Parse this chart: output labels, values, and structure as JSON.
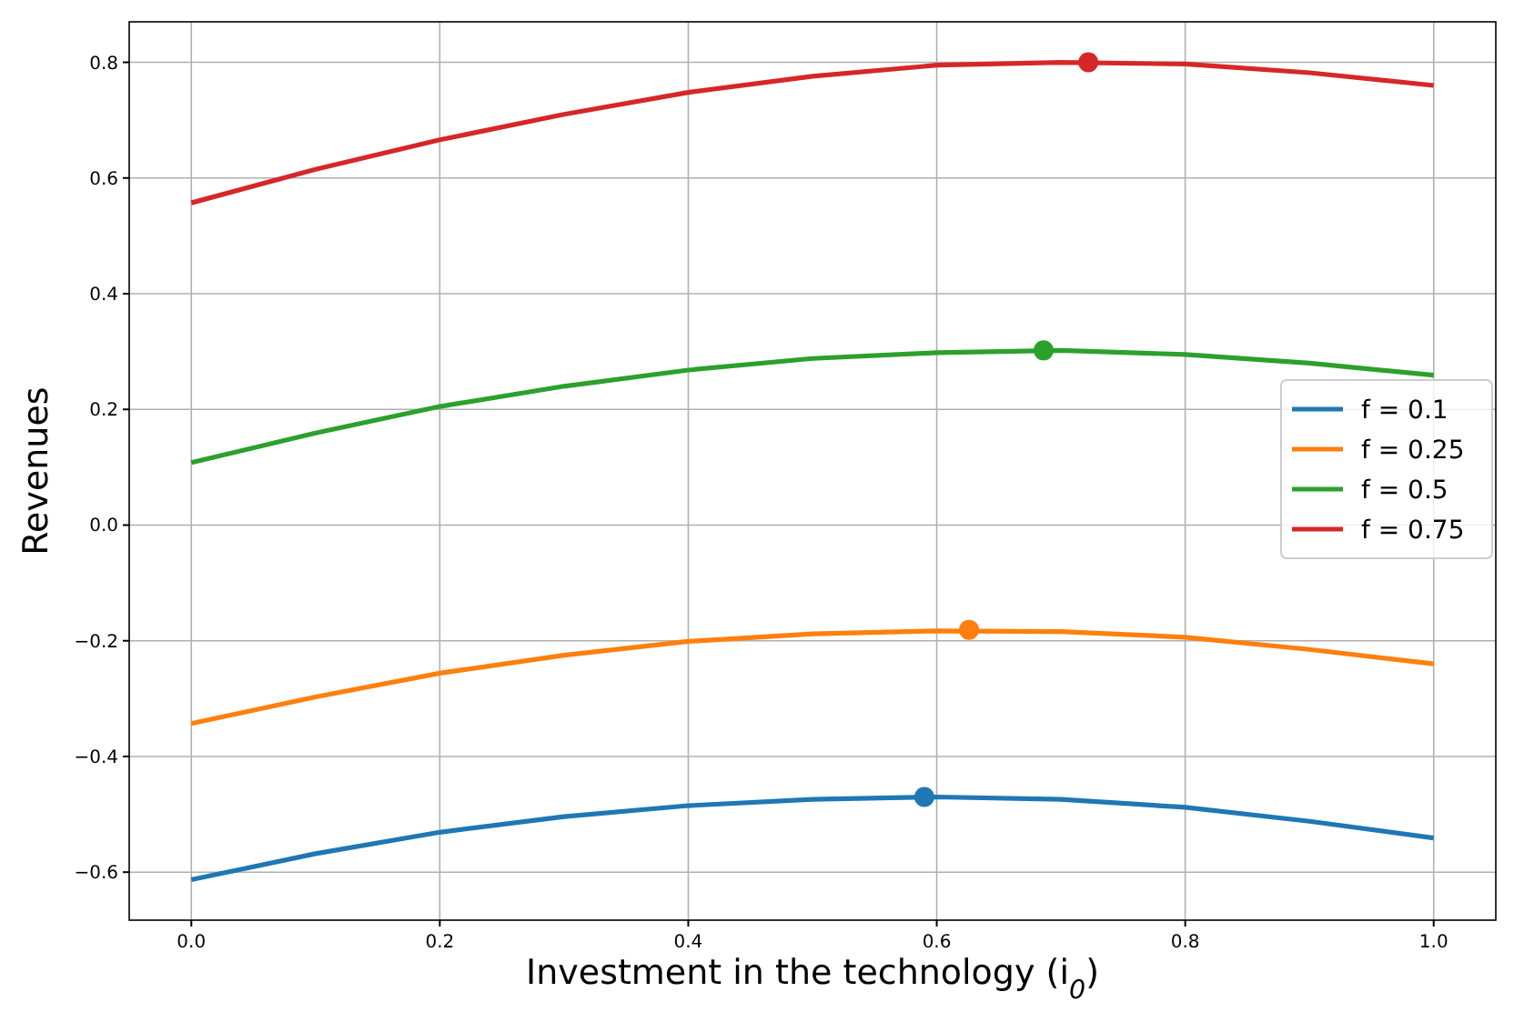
{
  "chart_data": {
    "type": "line",
    "xlabel": "Investment in the technology (i$_{0}$)",
    "ylabel": "Revenues",
    "x": [
      0,
      0.1,
      0.2,
      0.3,
      0.4,
      0.5,
      0.6,
      0.7,
      0.8,
      0.9,
      1.0
    ],
    "series": [
      {
        "name": "f = 0.1",
        "color": "#1f77b4",
        "values": [
          -0.613,
          -0.568,
          -0.531,
          -0.504,
          -0.485,
          -0.474,
          -0.47,
          -0.474,
          -0.488,
          -0.512,
          -0.541
        ]
      },
      {
        "name": "f = 0.25",
        "color": "#ff7f0e",
        "values": [
          -0.343,
          -0.297,
          -0.256,
          -0.225,
          -0.201,
          -0.188,
          -0.183,
          -0.184,
          -0.194,
          -0.215,
          -0.24
        ]
      },
      {
        "name": "f = 0.5",
        "color": "#2ca02c",
        "values": [
          0.108,
          0.159,
          0.205,
          0.24,
          0.268,
          0.288,
          0.298,
          0.302,
          0.295,
          0.28,
          0.259
        ]
      },
      {
        "name": "f = 0.75",
        "color": "#d62728",
        "values": [
          0.557,
          0.615,
          0.666,
          0.71,
          0.748,
          0.776,
          0.795,
          0.8,
          0.797,
          0.782,
          0.76
        ]
      },
      {
        "type": "scatter",
        "color": "#1f77b4",
        "x": [
          0.59
        ],
        "values": [
          -0.47
        ]
      },
      {
        "type": "scatter",
        "color": "#ff7f0e",
        "x": [
          0.626
        ],
        "values": [
          -0.181
        ]
      },
      {
        "type": "scatter",
        "color": "#2ca02c",
        "x": [
          0.686
        ],
        "values": [
          0.302
        ]
      },
      {
        "type": "scatter",
        "color": "#d62728",
        "x": [
          0.722
        ],
        "values": [
          0.8
        ]
      }
    ],
    "xlim": [
      -0.05,
      1.05
    ],
    "ylim": [
      -0.683,
      0.87
    ],
    "xticks": [
      {
        "value": 0,
        "label": "0.0"
      },
      {
        "value": 0.2,
        "label": "0.2"
      },
      {
        "value": 0.4,
        "label": "0.4"
      },
      {
        "value": 0.6,
        "label": "0.6"
      },
      {
        "value": 0.8,
        "label": "0.8"
      },
      {
        "value": 1.0,
        "label": "1.0"
      }
    ],
    "yticks": [
      {
        "value": -0.6,
        "label": "−0.6"
      },
      {
        "value": -0.4,
        "label": "−0.4"
      },
      {
        "value": -0.2,
        "label": "−0.2"
      },
      {
        "value": 0,
        "label": "0.0"
      },
      {
        "value": 0.2,
        "label": "0.2"
      },
      {
        "value": 0.4,
        "label": "0.4"
      },
      {
        "value": 0.6,
        "label": "0.6"
      },
      {
        "value": 0.8,
        "label": "0.8"
      }
    ],
    "grid": true,
    "legend": "right"
  }
}
